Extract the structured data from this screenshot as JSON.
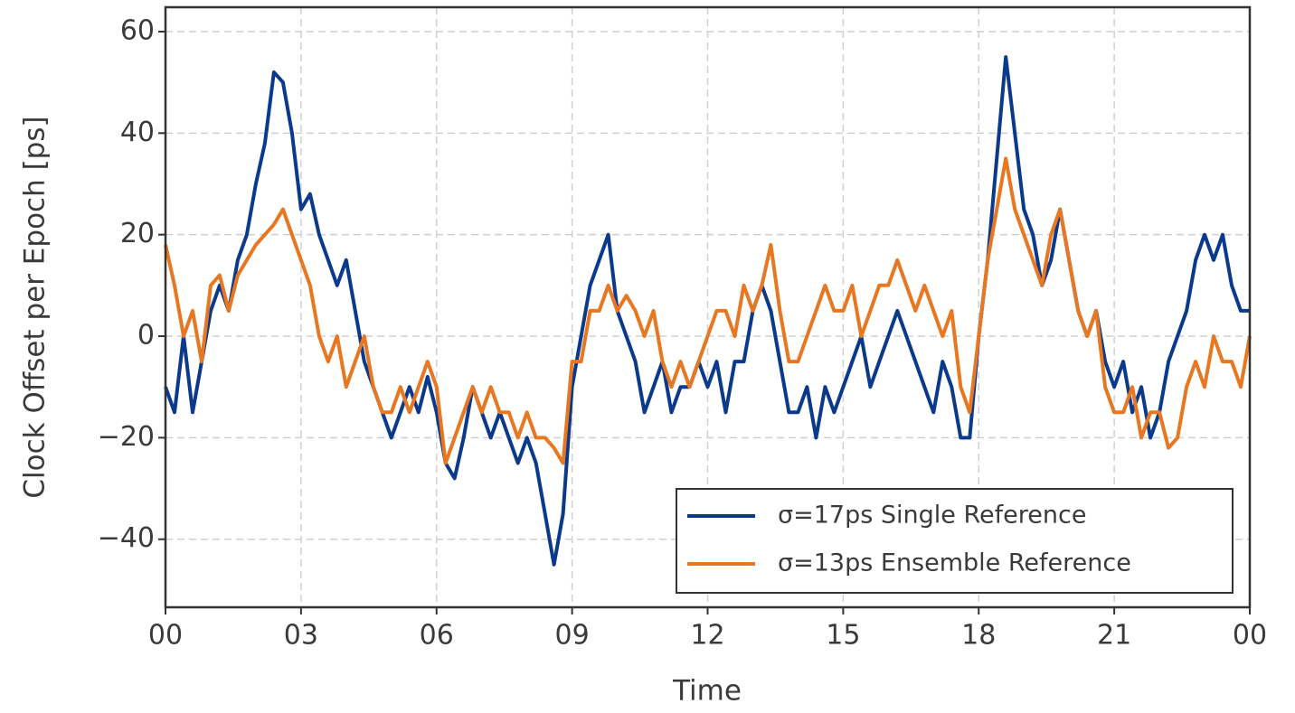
{
  "chart_data": {
    "type": "line",
    "xlabel": "Time",
    "ylabel": "Clock Offset per Epoch [ps]",
    "x": [
      0,
      0.2,
      0.4,
      0.6,
      0.8,
      1,
      1.2,
      1.4,
      1.6,
      1.8,
      2,
      2.2,
      2.4,
      2.6,
      2.8,
      3,
      3.2,
      3.4,
      3.6,
      3.8,
      4,
      4.2,
      4.4,
      4.6,
      4.8,
      5,
      5.2,
      5.4,
      5.6,
      5.8,
      6,
      6.2,
      6.4,
      6.6,
      6.8,
      7,
      7.2,
      7.4,
      7.6,
      7.8,
      8,
      8.2,
      8.4,
      8.6,
      8.8,
      9,
      9.2,
      9.4,
      9.6,
      9.8,
      10,
      10.2,
      10.4,
      10.6,
      10.8,
      11,
      11.2,
      11.4,
      11.6,
      11.8,
      12,
      12.2,
      12.4,
      12.6,
      12.8,
      13,
      13.2,
      13.4,
      13.6,
      13.8,
      14,
      14.2,
      14.4,
      14.6,
      14.8,
      15,
      15.2,
      15.4,
      15.6,
      15.8,
      16,
      16.2,
      16.4,
      16.6,
      16.8,
      17,
      17.2,
      17.4,
      17.6,
      17.8,
      18,
      18.2,
      18.4,
      18.6,
      18.8,
      19,
      19.2,
      19.4,
      19.6,
      19.8,
      20,
      20.2,
      20.4,
      20.6,
      20.8,
      21,
      21.2,
      21.4,
      21.6,
      21.8,
      22,
      22.2,
      22.4,
      22.6,
      22.8,
      23,
      23.2,
      23.4,
      23.6,
      23.8,
      24
    ],
    "series": [
      {
        "name": "σ=17ps Single Reference",
        "color": "#0b3a8c",
        "values": [
          -10,
          -15,
          0,
          -15,
          -5,
          5,
          10,
          5,
          15,
          20,
          30,
          38,
          52,
          50,
          40,
          25,
          28,
          20,
          15,
          10,
          15,
          5,
          -5,
          -10,
          -15,
          -20,
          -15,
          -10,
          -15,
          -8,
          -15,
          -25,
          -28,
          -20,
          -10,
          -15,
          -20,
          -15,
          -20,
          -25,
          -20,
          -25,
          -35,
          -45,
          -35,
          -10,
          0,
          10,
          15,
          20,
          5,
          0,
          -5,
          -15,
          -10,
          -5,
          -15,
          -10,
          -10,
          -5,
          -10,
          -5,
          -15,
          -5,
          -5,
          5,
          10,
          5,
          -5,
          -15,
          -15,
          -10,
          -20,
          -10,
          -15,
          -10,
          -5,
          0,
          -10,
          -5,
          0,
          5,
          0,
          -5,
          -10,
          -15,
          -5,
          -10,
          -20,
          -20,
          0,
          15,
          35,
          55,
          40,
          25,
          20,
          10,
          15,
          25,
          15,
          5,
          0,
          5,
          -5,
          -10,
          -5,
          -15,
          -10,
          -20,
          -15,
          -5,
          0,
          5,
          15,
          20,
          15,
          20,
          10,
          5,
          5
        ]
      },
      {
        "name": "σ=13ps Ensemble Reference",
        "color": "#e87722",
        "values": [
          18,
          10,
          0,
          5,
          -5,
          10,
          12,
          5,
          12,
          15,
          18,
          20,
          22,
          25,
          20,
          15,
          10,
          0,
          -5,
          0,
          -10,
          -5,
          0,
          -10,
          -15,
          -15,
          -10,
          -15,
          -10,
          -5,
          -10,
          -25,
          -20,
          -15,
          -10,
          -15,
          -10,
          -15,
          -15,
          -20,
          -15,
          -20,
          -20,
          -22,
          -25,
          -5,
          -5,
          5,
          5,
          10,
          5,
          8,
          5,
          0,
          5,
          -5,
          -10,
          -5,
          -10,
          -5,
          0,
          5,
          5,
          0,
          10,
          5,
          10,
          18,
          5,
          -5,
          -5,
          0,
          5,
          10,
          5,
          5,
          10,
          0,
          5,
          10,
          10,
          15,
          10,
          5,
          10,
          5,
          0,
          5,
          -10,
          -15,
          0,
          15,
          25,
          35,
          25,
          20,
          15,
          10,
          20,
          25,
          15,
          5,
          0,
          5,
          -10,
          -15,
          -15,
          -10,
          -20,
          -15,
          -15,
          -22,
          -20,
          -10,
          -5,
          -10,
          0,
          -5,
          -5,
          -10,
          0
        ]
      }
    ],
    "xlim": [
      0,
      24
    ],
    "xticks": [
      {
        "value": 0,
        "label": "00"
      },
      {
        "value": 3,
        "label": "03"
      },
      {
        "value": 6,
        "label": "06"
      },
      {
        "value": 9,
        "label": "09"
      },
      12,
      15,
      18,
      21,
      {
        "value": 24,
        "label": "00"
      }
    ],
    "ylim": [
      -53.4,
      64.8
    ],
    "yticks": [
      {
        "value": -40,
        "label": "−40"
      },
      {
        "value": -20,
        "label": "−20"
      },
      0,
      20,
      40,
      60
    ],
    "grid": true,
    "legend": "lower right"
  }
}
